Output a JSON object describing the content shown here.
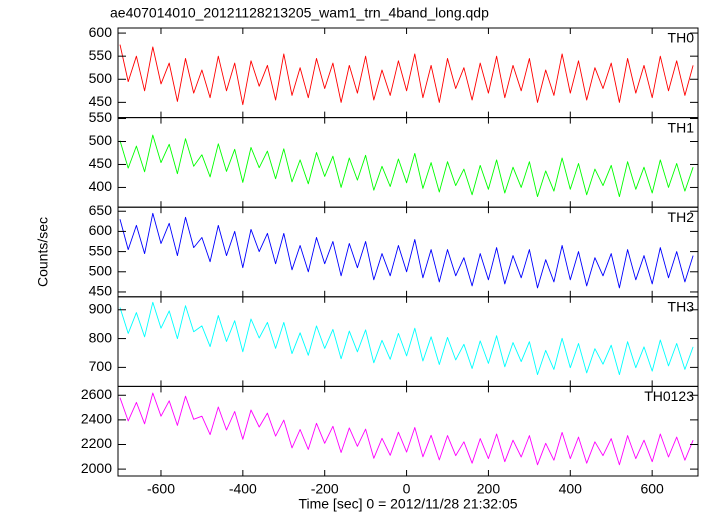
{
  "title": "ae407014010_20121128213205_wam1_trn_4band_long.qdp",
  "x_label": "Time [sec] 0 = 2012/11/28 21:32:05",
  "y_label": "Counts/sec",
  "chart_data": [
    {
      "type": "line",
      "name": "TH0",
      "color": "#ff0000",
      "ylim": [
        417,
        611
      ],
      "yticks": [
        450,
        500,
        550,
        600
      ],
      "x": [
        -700,
        -680,
        -660,
        -640,
        -620,
        -600,
        -580,
        -560,
        -540,
        -520,
        -500,
        -480,
        -460,
        -440,
        -420,
        -400,
        -380,
        -360,
        -340,
        -320,
        -300,
        -280,
        -260,
        -240,
        -220,
        -200,
        -180,
        -160,
        -140,
        -120,
        -100,
        -80,
        -60,
        -40,
        -20,
        0,
        20,
        40,
        60,
        80,
        100,
        120,
        140,
        160,
        180,
        200,
        220,
        240,
        260,
        280,
        300,
        320,
        340,
        360,
        380,
        400,
        420,
        440,
        460,
        480,
        500,
        520,
        540,
        560,
        580,
        600,
        620,
        640,
        660,
        680,
        700
      ],
      "values": [
        575,
        495,
        550,
        475,
        570,
        490,
        535,
        452,
        545,
        470,
        520,
        460,
        550,
        475,
        535,
        445,
        540,
        485,
        530,
        455,
        555,
        465,
        525,
        460,
        545,
        480,
        535,
        450,
        530,
        470,
        550,
        455,
        520,
        465,
        540,
        475,
        555,
        460,
        530,
        450,
        545,
        480,
        525,
        455,
        535,
        470,
        550,
        460,
        530,
        475,
        545,
        450,
        520,
        465,
        555,
        470,
        540,
        455,
        525,
        480,
        535,
        450,
        545,
        470,
        530,
        460,
        550,
        475,
        540,
        465,
        530
      ]
    },
    {
      "type": "line",
      "name": "TH1",
      "color": "#00ff00",
      "ylim": [
        357,
        552
      ],
      "yticks": [
        400,
        450,
        500,
        550
      ],
      "x": [
        -700,
        -680,
        -660,
        -640,
        -620,
        -600,
        -580,
        -560,
        -540,
        -520,
        -500,
        -480,
        -460,
        -440,
        -420,
        -400,
        -380,
        -360,
        -340,
        -320,
        -300,
        -280,
        -260,
        -240,
        -220,
        -200,
        -180,
        -160,
        -140,
        -120,
        -100,
        -80,
        -60,
        -40,
        -20,
        0,
        20,
        40,
        60,
        80,
        100,
        120,
        140,
        160,
        180,
        200,
        220,
        240,
        260,
        280,
        300,
        320,
        340,
        360,
        380,
        400,
        420,
        440,
        460,
        480,
        500,
        520,
        540,
        560,
        580,
        600,
        620,
        640,
        660,
        680,
        700
      ],
      "values": [
        502,
        442,
        490,
        434,
        514,
        454,
        494,
        430,
        506,
        446,
        471,
        423,
        495,
        435,
        483,
        411,
        487,
        443,
        479,
        419,
        484,
        412,
        460,
        408,
        476,
        424,
        468,
        400,
        464,
        416,
        470,
        394,
        446,
        402,
        462,
        410,
        474,
        398,
        454,
        390,
        456,
        404,
        440,
        384,
        448,
        396,
        460,
        388,
        444,
        400,
        456,
        380,
        436,
        392,
        464,
        396,
        452,
        384,
        440,
        404,
        448,
        380,
        456,
        396,
        444,
        388,
        460,
        400,
        452,
        392,
        444
      ]
    },
    {
      "type": "line",
      "name": "TH2",
      "color": "#0000ff",
      "ylim": [
        438,
        660
      ],
      "yticks": [
        450,
        500,
        550,
        600,
        650
      ],
      "x": [
        -700,
        -680,
        -660,
        -640,
        -620,
        -600,
        -580,
        -560,
        -540,
        -520,
        -500,
        -480,
        -460,
        -440,
        -420,
        -400,
        -380,
        -360,
        -340,
        -320,
        -300,
        -280,
        -260,
        -240,
        -220,
        -200,
        -180,
        -160,
        -140,
        -120,
        -100,
        -80,
        -60,
        -40,
        -20,
        0,
        20,
        40,
        60,
        80,
        100,
        120,
        140,
        160,
        180,
        200,
        220,
        240,
        260,
        280,
        300,
        320,
        340,
        360,
        380,
        400,
        420,
        440,
        460,
        480,
        500,
        520,
        540,
        560,
        580,
        600,
        620,
        640,
        660,
        680,
        700
      ],
      "values": [
        630,
        555,
        615,
        545,
        645,
        570,
        620,
        540,
        635,
        560,
        585,
        525,
        615,
        540,
        600,
        510,
        605,
        550,
        595,
        520,
        595,
        505,
        565,
        500,
        585,
        520,
        575,
        490,
        570,
        510,
        575,
        480,
        545,
        490,
        565,
        500,
        580,
        485,
        555,
        475,
        555,
        490,
        535,
        465,
        545,
        480,
        560,
        470,
        540,
        485,
        555,
        460,
        530,
        475,
        565,
        480,
        550,
        465,
        535,
        490,
        545,
        460,
        555,
        480,
        540,
        470,
        560,
        485,
        550,
        475,
        540
      ]
    },
    {
      "type": "line",
      "name": "TH3",
      "color": "#00ffff",
      "ylim": [
        634,
        945
      ],
      "yticks": [
        700,
        800,
        900
      ],
      "x": [
        -700,
        -680,
        -660,
        -640,
        -620,
        -600,
        -580,
        -560,
        -540,
        -520,
        -500,
        -480,
        -460,
        -440,
        -420,
        -400,
        -380,
        -360,
        -340,
        -320,
        -300,
        -280,
        -260,
        -240,
        -220,
        -200,
        -180,
        -160,
        -140,
        -120,
        -100,
        -80,
        -60,
        -40,
        -20,
        0,
        20,
        40,
        60,
        80,
        100,
        120,
        140,
        160,
        180,
        200,
        220,
        240,
        260,
        280,
        300,
        320,
        340,
        360,
        380,
        400,
        420,
        440,
        460,
        480,
        500,
        520,
        540,
        560,
        580,
        600,
        620,
        640,
        660,
        680,
        700
      ],
      "values": [
        908,
        818,
        890,
        806,
        926,
        836,
        896,
        800,
        914,
        824,
        844,
        772,
        880,
        790,
        862,
        754,
        868,
        802,
        856,
        766,
        856,
        748,
        820,
        742,
        844,
        766,
        832,
        730,
        826,
        754,
        830,
        716,
        794,
        728,
        818,
        740,
        836,
        722,
        806,
        710,
        804,
        726,
        780,
        696,
        792,
        714,
        810,
        702,
        786,
        720,
        789,
        675,
        759,
        693,
        801,
        699,
        783,
        681,
        765,
        711,
        777,
        675,
        789,
        699,
        771,
        687,
        795,
        705,
        783,
        693,
        771
      ]
    },
    {
      "type": "line",
      "name": "TH0123",
      "color": "#ff00ff",
      "ylim": [
        1944,
        2672
      ],
      "yticks": [
        2000,
        2200,
        2400,
        2600
      ],
      "xlim": [
        -705,
        712
      ],
      "xticks": [
        -600,
        -400,
        -200,
        0,
        200,
        400,
        600
      ],
      "x": [
        -700,
        -680,
        -660,
        -640,
        -620,
        -600,
        -580,
        -560,
        -540,
        -520,
        -500,
        -480,
        -460,
        -440,
        -420,
        -400,
        -380,
        -360,
        -340,
        -320,
        -300,
        -280,
        -260,
        -240,
        -220,
        -200,
        -180,
        -160,
        -140,
        -120,
        -100,
        -80,
        -60,
        -40,
        -20,
        0,
        20,
        40,
        60,
        80,
        100,
        120,
        140,
        160,
        180,
        200,
        220,
        240,
        260,
        280,
        300,
        320,
        340,
        360,
        380,
        400,
        420,
        440,
        460,
        480,
        500,
        520,
        540,
        560,
        580,
        600,
        620,
        640,
        660,
        680,
        700
      ],
      "values": [
        2580,
        2392,
        2542,
        2368,
        2618,
        2430,
        2555,
        2355,
        2592,
        2405,
        2430,
        2280,
        2505,
        2318,
        2468,
        2242,
        2480,
        2342,
        2455,
        2268,
        2398,
        2172,
        2322,
        2160,
        2372,
        2210,
        2348,
        2135,
        2335,
        2185,
        2325,
        2088,
        2250,
        2112,
        2300,
        2138,
        2338,
        2100,
        2275,
        2075,
        2272,
        2110,
        2222,
        2048,
        2248,
        2085,
        2285,
        2060,
        2235,
        2098,
        2272,
        2035,
        2210,
        2072,
        2298,
        2085,
        2260,
        2048,
        2222,
        2110,
        2248,
        2035,
        2272,
        2085,
        2235,
        2060,
        2285,
        2098,
        2260,
        2072,
        2235
      ]
    }
  ]
}
